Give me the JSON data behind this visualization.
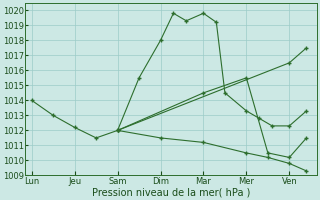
{
  "background_color": "#cce8e4",
  "grid_color": "#9cccc8",
  "line_color": "#2d6e2d",
  "title": "Pression niveau de la mer( hPa )",
  "ylim": [
    1009,
    1020.5
  ],
  "yticks": [
    1009,
    1010,
    1011,
    1012,
    1013,
    1014,
    1015,
    1016,
    1017,
    1018,
    1019,
    1020
  ],
  "x_labels": [
    "Lun",
    "Jeu",
    "Sam",
    "Dim",
    "Mar",
    "Mer",
    "Ven"
  ],
  "x_positions": [
    0,
    1,
    2,
    3,
    4,
    5,
    6
  ],
  "series": [
    {
      "x": [
        0,
        0.5,
        1.0,
        1.5,
        2.0,
        2.5,
        3.0,
        3.3,
        3.6,
        4.0,
        4.3,
        4.5,
        5.0,
        5.3,
        5.6,
        6.0,
        6.4
      ],
      "y": [
        1014,
        1013,
        1012.2,
        1011.5,
        1012,
        1015.5,
        1018,
        1019.8,
        1019.3,
        1019.8,
        1019.2,
        1014.5,
        1013.3,
        1012.8,
        1012.3,
        1012.3,
        1013.3
      ]
    },
    {
      "x": [
        2.0,
        6.0,
        6.4
      ],
      "y": [
        1012,
        1016.5,
        1017.5
      ]
    },
    {
      "x": [
        2.0,
        4.0,
        5.0,
        5.5,
        6.0,
        6.4
      ],
      "y": [
        1012,
        1014.5,
        1015.5,
        1010.5,
        1010.2,
        1011.5
      ]
    },
    {
      "x": [
        2.0,
        3.0,
        4.0,
        5.0,
        5.5,
        6.0,
        6.4
      ],
      "y": [
        1012,
        1011.5,
        1011.2,
        1010.5,
        1010.2,
        1009.8,
        1009.3
      ]
    }
  ]
}
